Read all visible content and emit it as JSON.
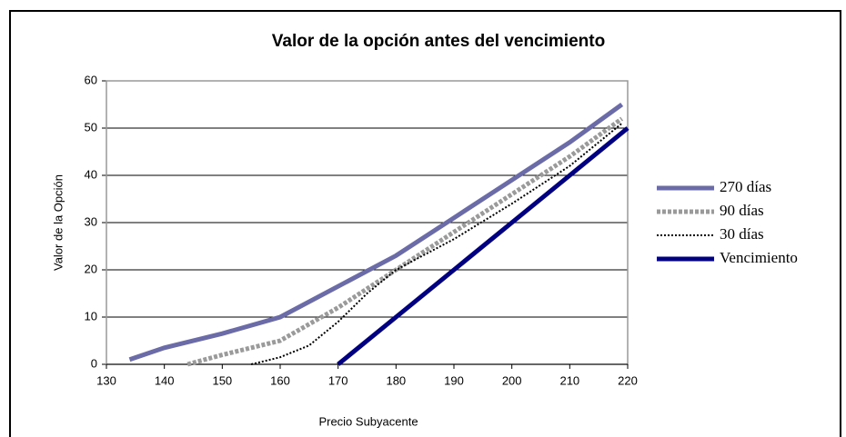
{
  "chart_data": {
    "type": "line",
    "title": "Valor de la opción antes del vencimiento",
    "x_label": "Precio Subyacente",
    "y_label": "Valor de la Opción",
    "xlim": [
      130,
      220
    ],
    "ylim": [
      0,
      60
    ],
    "xticks": [
      130,
      140,
      150,
      160,
      170,
      180,
      190,
      200,
      210,
      220
    ],
    "yticks": [
      0,
      10,
      20,
      30,
      40,
      50,
      60
    ],
    "grid": true,
    "legend": "right",
    "series": [
      {
        "name": "270 días",
        "color": "#6b6ba8",
        "style": "solid",
        "x": [
          134,
          140,
          150,
          160,
          170,
          180,
          190,
          200,
          210,
          219
        ],
        "values": [
          1,
          3.5,
          6.5,
          10,
          16.5,
          23,
          31,
          39,
          47,
          55
        ]
      },
      {
        "name": "90 días",
        "color": "#9a9a9a",
        "style": "dashed",
        "x": [
          144,
          150,
          160,
          170,
          180,
          190,
          200,
          210,
          219
        ],
        "values": [
          0,
          2,
          5,
          12,
          20,
          28,
          36,
          44,
          52
        ]
      },
      {
        "name": "30 días",
        "color": "#000000",
        "style": "dotted",
        "x": [
          155,
          160,
          165,
          170,
          175,
          180,
          190,
          200,
          210,
          219
        ],
        "values": [
          0,
          1.5,
          4,
          9,
          15,
          20,
          26.5,
          34,
          42,
          51
        ]
      },
      {
        "name": "Vencimiento",
        "color": "#000080",
        "style": "solid",
        "x": [
          170,
          180,
          190,
          200,
          210,
          220
        ],
        "values": [
          0,
          10,
          20,
          30,
          40,
          50
        ]
      }
    ]
  }
}
